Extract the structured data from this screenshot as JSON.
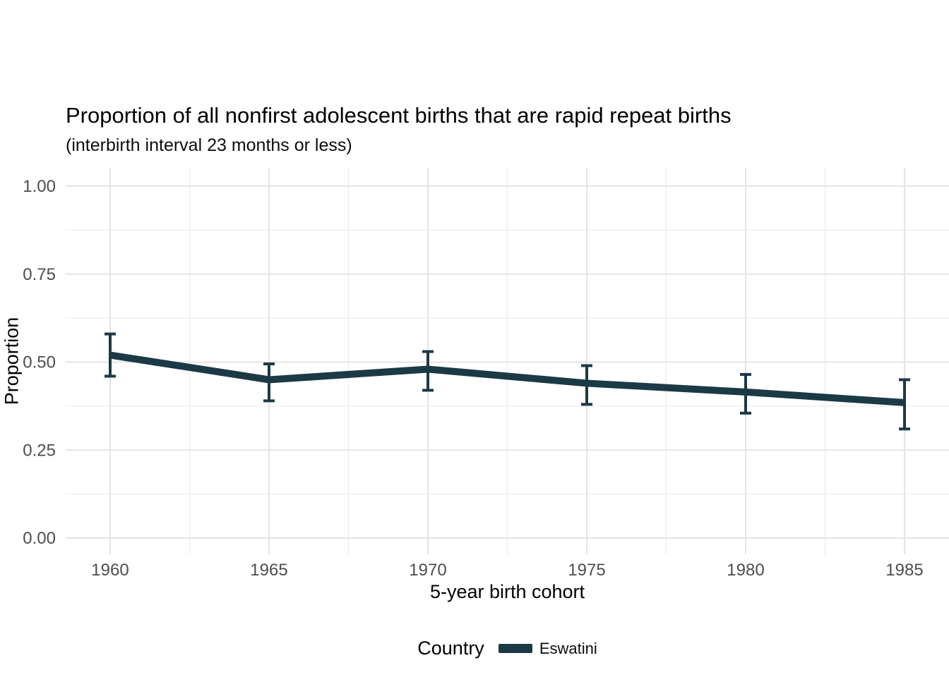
{
  "chart_data": {
    "type": "line",
    "title": "Proportion of all nonfirst adolescent births that are rapid repeat births",
    "subtitle": "(interbirth interval 23 months or less)",
    "xlabel": "5-year birth cohort",
    "ylabel": "Proportion",
    "x": [
      1960,
      1965,
      1970,
      1975,
      1980,
      1985
    ],
    "x_tick_labels": [
      "1960",
      "1965",
      "1970",
      "1975",
      "1980",
      "1985"
    ],
    "x_minor_ticks": [
      1962.5,
      1967.5,
      1972.5,
      1977.5,
      1982.5
    ],
    "xlim": [
      1958.6,
      1986.4
    ],
    "y_ticks": [
      0,
      0.25,
      0.5,
      0.75,
      1
    ],
    "y_tick_labels": [
      "0.00",
      "0.25",
      "0.50",
      "0.75",
      "1.00"
    ],
    "y_minor_ticks": [
      0.125,
      0.375,
      0.625,
      0.875
    ],
    "ylim": [
      0,
      1
    ],
    "grid": true,
    "legend": {
      "title": "Country",
      "position": "bottom",
      "entries": [
        {
          "label": "Eswatini",
          "color": "#1b3a46"
        }
      ]
    },
    "series": [
      {
        "name": "Eswatini",
        "color": "#1b3a46",
        "values": [
          0.52,
          0.45,
          0.48,
          0.44,
          0.415,
          0.385
        ],
        "ci_low": [
          0.46,
          0.39,
          0.42,
          0.38,
          0.355,
          0.31
        ],
        "ci_high": [
          0.58,
          0.495,
          0.53,
          0.49,
          0.465,
          0.45
        ]
      }
    ],
    "colors": {
      "background": "#ffffff",
      "grid_major": "#e4e4e4",
      "grid_minor": "#efefef",
      "tick_text": "#4d4d4d",
      "series_eswatini": "#1b3a46"
    }
  }
}
